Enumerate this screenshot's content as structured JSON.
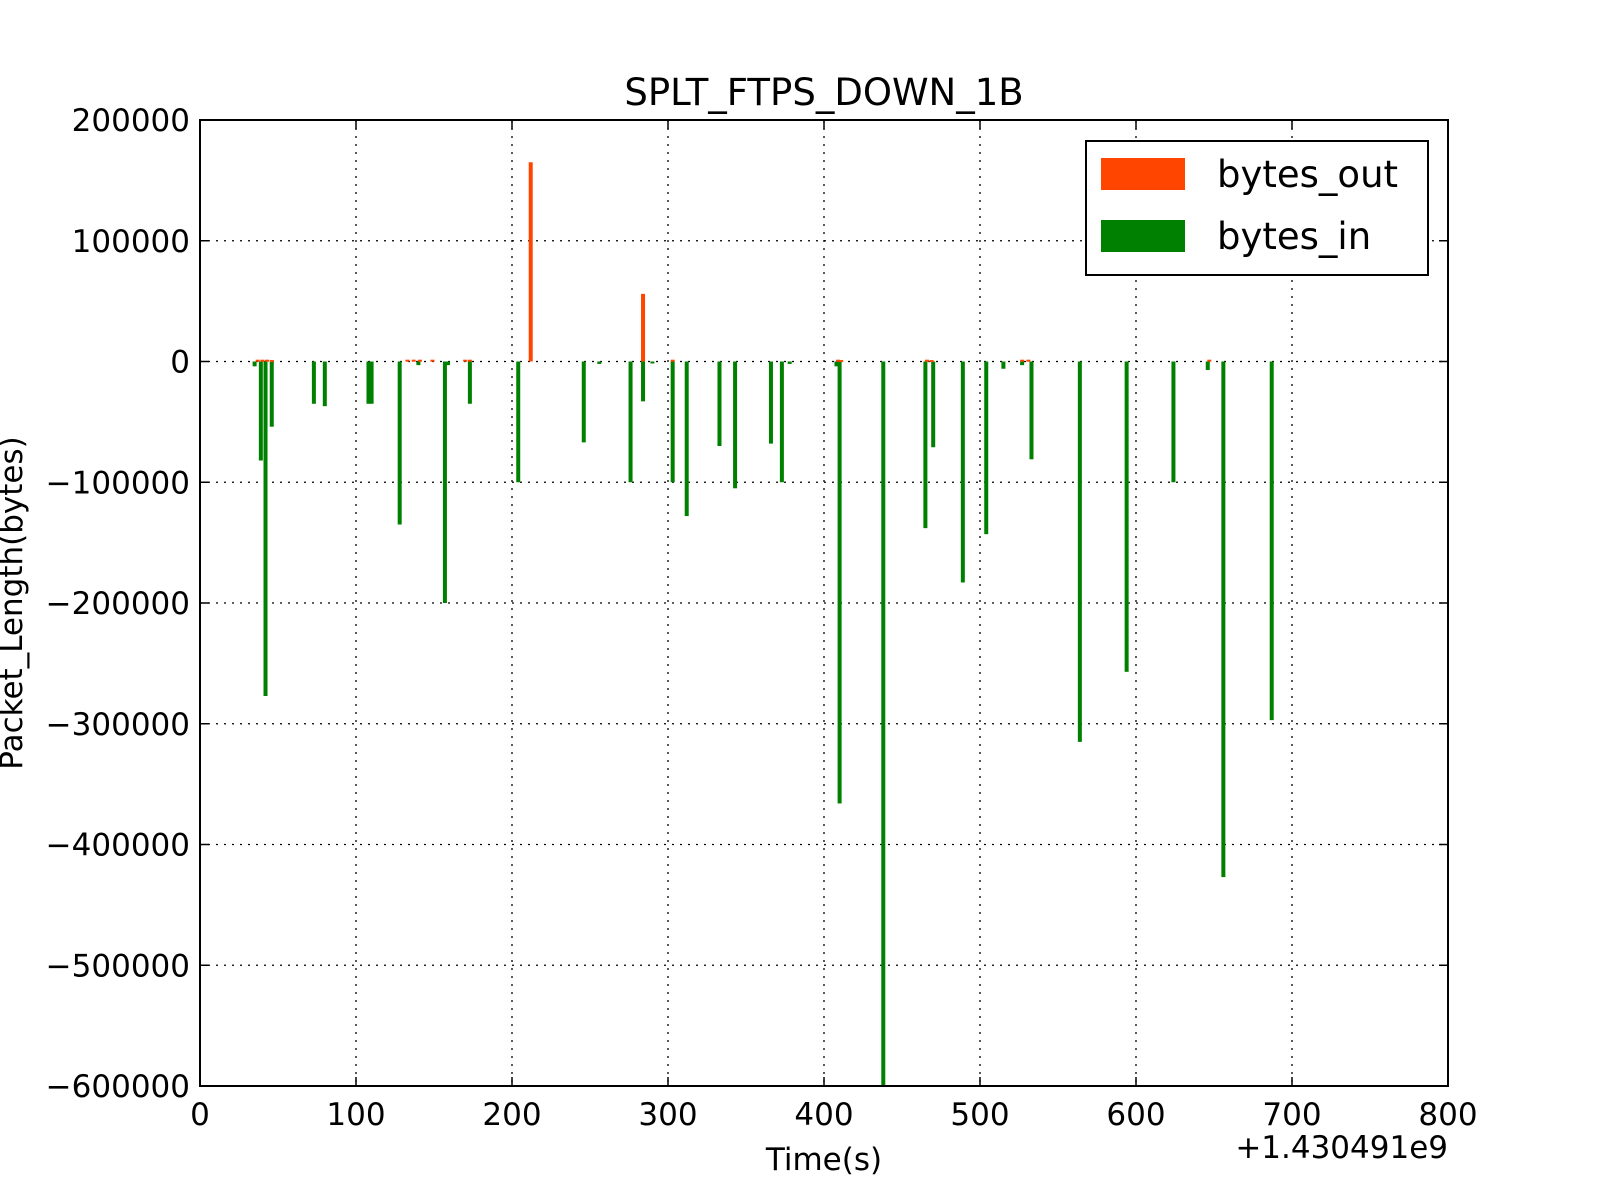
{
  "chart_data": {
    "type": "bar",
    "title": "SPLT_FTPS_DOWN_1B",
    "xlabel": "Time(s)",
    "ylabel": "Packet_Length(bytes)",
    "x_offset_label": "+1.430491e9",
    "xlim": [
      0,
      800
    ],
    "ylim": [
      -600000,
      200000
    ],
    "xticks": [
      0,
      100,
      200,
      300,
      400,
      500,
      600,
      700,
      800
    ],
    "xtick_labels": [
      "0",
      "100",
      "200",
      "300",
      "400",
      "500",
      "600",
      "700",
      "800"
    ],
    "yticks": [
      200000,
      100000,
      0,
      -100000,
      -200000,
      -300000,
      -400000,
      -500000,
      -600000
    ],
    "ytick_labels": [
      "200000",
      "100000",
      "0",
      "−100000",
      "−200000",
      "−300000",
      "−400000",
      "−500000",
      "−600000"
    ],
    "grid": true,
    "legend_position": "top-right",
    "series": [
      {
        "name": "bytes_out",
        "color": "#ff4500",
        "points": [
          {
            "x": 37,
            "y": 1500
          },
          {
            "x": 40,
            "y": 1500
          },
          {
            "x": 43,
            "y": 1500
          },
          {
            "x": 46,
            "y": 1200
          },
          {
            "x": 133,
            "y": 1500
          },
          {
            "x": 137,
            "y": 1500
          },
          {
            "x": 141,
            "y": 1500
          },
          {
            "x": 149,
            "y": 1500
          },
          {
            "x": 170,
            "y": 1500
          },
          {
            "x": 173,
            "y": 1500
          },
          {
            "x": 212,
            "y": 165000
          },
          {
            "x": 284,
            "y": 56000
          },
          {
            "x": 303,
            "y": 1500
          },
          {
            "x": 409,
            "y": 1500
          },
          {
            "x": 411,
            "y": 1200
          },
          {
            "x": 466,
            "y": 1500
          },
          {
            "x": 469,
            "y": 1200
          },
          {
            "x": 527,
            "y": 1500
          },
          {
            "x": 531,
            "y": 1500
          },
          {
            "x": 647,
            "y": 1500
          }
        ]
      },
      {
        "name": "bytes_in",
        "color": "#008000",
        "points": [
          {
            "x": 35,
            "y": -4000
          },
          {
            "x": 39,
            "y": -82000
          },
          {
            "x": 42,
            "y": -277000
          },
          {
            "x": 46,
            "y": -54000
          },
          {
            "x": 73,
            "y": -35000
          },
          {
            "x": 80,
            "y": -37000
          },
          {
            "x": 108,
            "y": -35000
          },
          {
            "x": 110,
            "y": -35000
          },
          {
            "x": 128,
            "y": -135000
          },
          {
            "x": 140,
            "y": -3000
          },
          {
            "x": 157,
            "y": -200000
          },
          {
            "x": 159,
            "y": -3000
          },
          {
            "x": 173,
            "y": -35000
          },
          {
            "x": 204,
            "y": -100000
          },
          {
            "x": 246,
            "y": -67000
          },
          {
            "x": 256,
            "y": -2000
          },
          {
            "x": 276,
            "y": -100000
          },
          {
            "x": 284,
            "y": -33000
          },
          {
            "x": 290,
            "y": -1500
          },
          {
            "x": 303,
            "y": -100000
          },
          {
            "x": 312,
            "y": -128000
          },
          {
            "x": 333,
            "y": -70000
          },
          {
            "x": 343,
            "y": -105000
          },
          {
            "x": 366,
            "y": -68000
          },
          {
            "x": 373,
            "y": -100000
          },
          {
            "x": 378,
            "y": -2000
          },
          {
            "x": 408,
            "y": -4000
          },
          {
            "x": 410,
            "y": -366000
          },
          {
            "x": 438,
            "y": -600000
          },
          {
            "x": 465,
            "y": -138000
          },
          {
            "x": 470,
            "y": -71000
          },
          {
            "x": 489,
            "y": -183000
          },
          {
            "x": 504,
            "y": -143000
          },
          {
            "x": 515,
            "y": -6000
          },
          {
            "x": 527,
            "y": -3000
          },
          {
            "x": 533,
            "y": -81000
          },
          {
            "x": 564,
            "y": -315000
          },
          {
            "x": 594,
            "y": -257000
          },
          {
            "x": 624,
            "y": -100000
          },
          {
            "x": 646,
            "y": -7000
          },
          {
            "x": 656,
            "y": -427000
          },
          {
            "x": 687,
            "y": -297000
          }
        ]
      }
    ]
  }
}
